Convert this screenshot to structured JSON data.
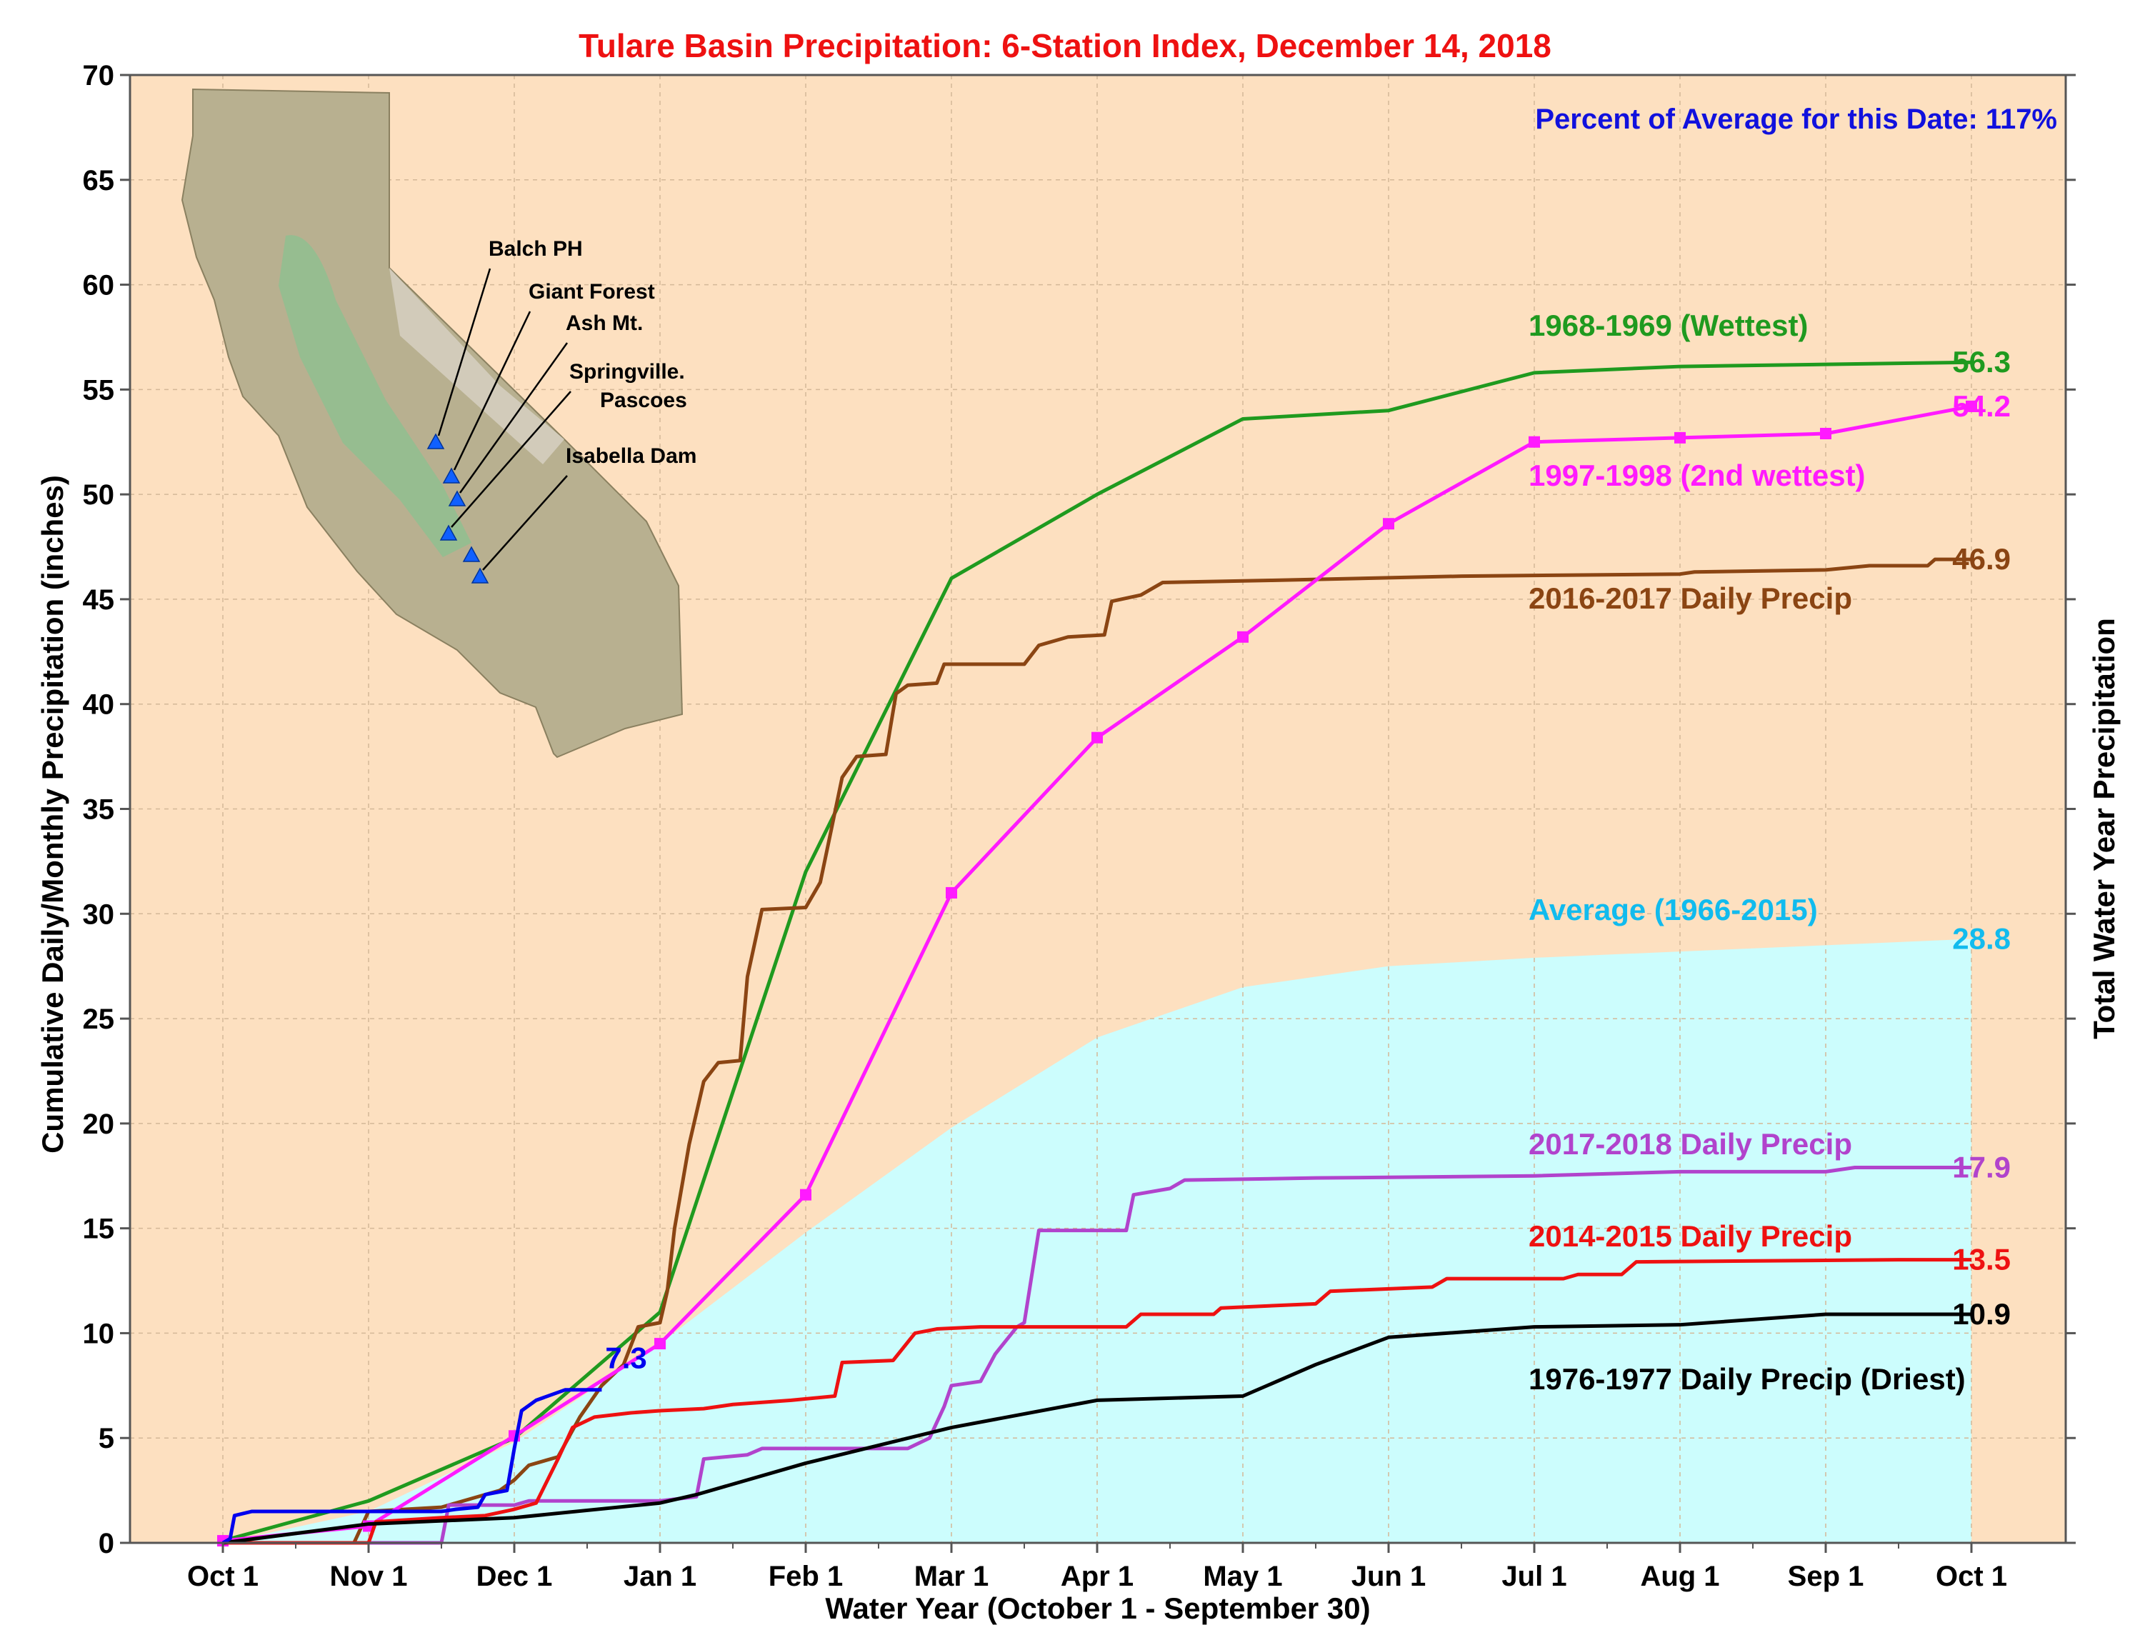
{
  "chart_data": {
    "type": "line",
    "title": "Tulare Basin Precipitation: 6-Station Index, December 14, 2018",
    "xlabel": "Water Year (October 1 - September 30)",
    "ylabel": "Cumulative Daily/Monthly Precipitation (inches)",
    "ylabel_right": "Total Water Year Precipitation",
    "annotation": "Percent of Average for this Date: 117%",
    "ylim": [
      0,
      70
    ],
    "y_ticks": [
      "0",
      "5",
      "10",
      "15",
      "20",
      "25",
      "30",
      "35",
      "40",
      "45",
      "50",
      "55",
      "60",
      "65",
      "70"
    ],
    "x_ticks": [
      "Oct 1",
      "Nov 1",
      "Dec 1",
      "Jan 1",
      "Feb 1",
      "Mar 1",
      "Apr 1",
      "May 1",
      "Jun 1",
      "Jul 1",
      "Aug 1",
      "Sep 1",
      "Oct 1"
    ],
    "grid": true,
    "colors": {
      "plot_bg": "#fde0c0",
      "average_fill": "#ccfdfd",
      "title": "#ee1111",
      "annotation": "#1111dd"
    },
    "map": {
      "stations": [
        "Balch PH",
        "Giant Forest",
        "Ash Mt.",
        "Springville.",
        "Pascoes",
        "Isabella Dam"
      ]
    },
    "series": [
      {
        "key": "wettest",
        "name": "1968-1969 (Wettest)",
        "end_label": "56.3",
        "color": "#1f9a1f",
        "markers": false,
        "points": [
          [
            0,
            0.1
          ],
          [
            1,
            2
          ],
          [
            2,
            5
          ],
          [
            3,
            11
          ],
          [
            4,
            32
          ],
          [
            5,
            46
          ],
          [
            6,
            50
          ],
          [
            7,
            53.6
          ],
          [
            8,
            54
          ],
          [
            9,
            55.8
          ],
          [
            10,
            56.1
          ],
          [
            11,
            56.2
          ],
          [
            12,
            56.3
          ]
        ]
      },
      {
        "key": "second",
        "name": "1997-1998  (2nd wettest)",
        "end_label": "54.2",
        "color": "#ff1aff",
        "markers": true,
        "points": [
          [
            0,
            0.1
          ],
          [
            1,
            0.8
          ],
          [
            2,
            5.1
          ],
          [
            3,
            9.5
          ],
          [
            4,
            16.6
          ],
          [
            5,
            31
          ],
          [
            6,
            38.4
          ],
          [
            7,
            43.2
          ],
          [
            8,
            48.6
          ],
          [
            9,
            52.5
          ],
          [
            10,
            52.7
          ],
          [
            11,
            52.9
          ],
          [
            12,
            54.2
          ]
        ]
      },
      {
        "key": "wy2017",
        "name": "2016-2017 Daily Precip",
        "end_label": "46.9",
        "color": "#8b4513",
        "markers": false,
        "points": [
          [
            0,
            0
          ],
          [
            0.9,
            0
          ],
          [
            1,
            1.5
          ],
          [
            1.5,
            1.7
          ],
          [
            1.9,
            2.5
          ],
          [
            2,
            3
          ],
          [
            2.1,
            3.7
          ],
          [
            2.3,
            4.1
          ],
          [
            2.45,
            6
          ],
          [
            2.6,
            7.5
          ],
          [
            2.75,
            8.5
          ],
          [
            2.85,
            10.3
          ],
          [
            3,
            10.5
          ],
          [
            3.05,
            12
          ],
          [
            3.1,
            15
          ],
          [
            3.2,
            19
          ],
          [
            3.3,
            22
          ],
          [
            3.4,
            22.9
          ],
          [
            3.55,
            23
          ],
          [
            3.6,
            27
          ],
          [
            3.7,
            30.2
          ],
          [
            4,
            30.3
          ],
          [
            4.1,
            31.5
          ],
          [
            4.25,
            36.5
          ],
          [
            4.35,
            37.5
          ],
          [
            4.55,
            37.6
          ],
          [
            4.62,
            40.5
          ],
          [
            4.7,
            40.9
          ],
          [
            4.9,
            41
          ],
          [
            4.95,
            41.9
          ],
          [
            5.5,
            41.9
          ],
          [
            5.6,
            42.8
          ],
          [
            5.8,
            43.2
          ],
          [
            6.05,
            43.3
          ],
          [
            6.1,
            44.9
          ],
          [
            6.3,
            45.2
          ],
          [
            6.45,
            45.8
          ],
          [
            7.2,
            45.9
          ],
          [
            8.5,
            46.1
          ],
          [
            10,
            46.2
          ],
          [
            10.1,
            46.3
          ],
          [
            11,
            46.4
          ],
          [
            11.3,
            46.6
          ],
          [
            11.7,
            46.6
          ],
          [
            11.75,
            46.9
          ],
          [
            12,
            46.9
          ]
        ]
      },
      {
        "key": "average",
        "name": "Average (1966-2015)",
        "end_label": "28.8",
        "color": "#11bbee",
        "markers": false,
        "points": [
          [
            0,
            0
          ],
          [
            1,
            1.5
          ],
          [
            2,
            4.8
          ],
          [
            3,
            9.5
          ],
          [
            4,
            14.8
          ],
          [
            5,
            19.8
          ],
          [
            6,
            24.1
          ],
          [
            7,
            26.5
          ],
          [
            8,
            27.5
          ],
          [
            9,
            27.9
          ],
          [
            10,
            28.2
          ],
          [
            11,
            28.5
          ],
          [
            12,
            28.8
          ]
        ]
      },
      {
        "key": "wy2018",
        "name": "2017-2018 Daily Precip",
        "end_label": "17.9",
        "color": "#b143cc",
        "markers": false,
        "points": [
          [
            0,
            0
          ],
          [
            1,
            0
          ],
          [
            1.5,
            0
          ],
          [
            1.55,
            1.8
          ],
          [
            2,
            1.8
          ],
          [
            2.1,
            2
          ],
          [
            3,
            2
          ],
          [
            3.25,
            2.2
          ],
          [
            3.3,
            4
          ],
          [
            3.6,
            4.2
          ],
          [
            3.7,
            4.5
          ],
          [
            4.7,
            4.5
          ],
          [
            4.85,
            5
          ],
          [
            4.95,
            6.5
          ],
          [
            5,
            7.5
          ],
          [
            5.2,
            7.7
          ],
          [
            5.3,
            9
          ],
          [
            5.45,
            10.3
          ],
          [
            5.5,
            10.5
          ],
          [
            5.6,
            14.9
          ],
          [
            6.2,
            14.9
          ],
          [
            6.25,
            16.6
          ],
          [
            6.5,
            16.9
          ],
          [
            6.6,
            17.3
          ],
          [
            7.5,
            17.4
          ],
          [
            9,
            17.5
          ],
          [
            10,
            17.7
          ],
          [
            11,
            17.7
          ],
          [
            11.2,
            17.9
          ],
          [
            12,
            17.9
          ]
        ]
      },
      {
        "key": "wy2015",
        "name": "2014-2015 Daily Precip",
        "end_label": "13.5",
        "color": "#ee1111",
        "markers": false,
        "points": [
          [
            0,
            0
          ],
          [
            1,
            0
          ],
          [
            1.05,
            1
          ],
          [
            1.5,
            1.2
          ],
          [
            1.8,
            1.3
          ],
          [
            2,
            1.6
          ],
          [
            2.15,
            1.9
          ],
          [
            2.3,
            4
          ],
          [
            2.4,
            5.5
          ],
          [
            2.55,
            6
          ],
          [
            2.8,
            6.2
          ],
          [
            3,
            6.3
          ],
          [
            3.3,
            6.4
          ],
          [
            3.5,
            6.6
          ],
          [
            3.9,
            6.8
          ],
          [
            4.2,
            7
          ],
          [
            4.25,
            8.6
          ],
          [
            4.6,
            8.7
          ],
          [
            4.75,
            10
          ],
          [
            4.9,
            10.2
          ],
          [
            5.2,
            10.3
          ],
          [
            6.2,
            10.3
          ],
          [
            6.3,
            10.9
          ],
          [
            6.8,
            10.9
          ],
          [
            6.85,
            11.2
          ],
          [
            7.5,
            11.4
          ],
          [
            7.6,
            12
          ],
          [
            8.3,
            12.2
          ],
          [
            8.4,
            12.6
          ],
          [
            9.2,
            12.6
          ],
          [
            9.3,
            12.8
          ],
          [
            9.6,
            12.8
          ],
          [
            9.7,
            13.4
          ],
          [
            11.5,
            13.5
          ],
          [
            12,
            13.5
          ]
        ]
      },
      {
        "key": "driest",
        "name": "1976-1977 Daily Precip (Driest)",
        "end_label": "10.9",
        "color": "#000000",
        "markers": false,
        "points": [
          [
            0,
            0
          ],
          [
            1,
            0.9
          ],
          [
            2,
            1.2
          ],
          [
            3,
            1.9
          ],
          [
            3.25,
            2.3
          ],
          [
            4,
            3.8
          ],
          [
            5,
            5.5
          ],
          [
            6,
            6.8
          ],
          [
            7,
            7
          ],
          [
            7.5,
            8.5
          ],
          [
            8,
            9.8
          ],
          [
            9,
            10.3
          ],
          [
            10,
            10.4
          ],
          [
            11,
            10.9
          ],
          [
            12,
            10.9
          ]
        ]
      },
      {
        "key": "wy2019",
        "name": "",
        "end_label": "7.3",
        "color": "#0000ee",
        "markers": false,
        "points": [
          [
            0,
            0
          ],
          [
            0.05,
            0.2
          ],
          [
            0.08,
            1.3
          ],
          [
            0.2,
            1.5
          ],
          [
            1.5,
            1.5
          ],
          [
            1.6,
            1.6
          ],
          [
            1.75,
            1.7
          ],
          [
            1.8,
            2.3
          ],
          [
            1.95,
            2.5
          ],
          [
            2,
            4.5
          ],
          [
            2.05,
            6.3
          ],
          [
            2.15,
            6.8
          ],
          [
            2.35,
            7.3
          ],
          [
            2.6,
            7.3
          ]
        ]
      }
    ]
  }
}
